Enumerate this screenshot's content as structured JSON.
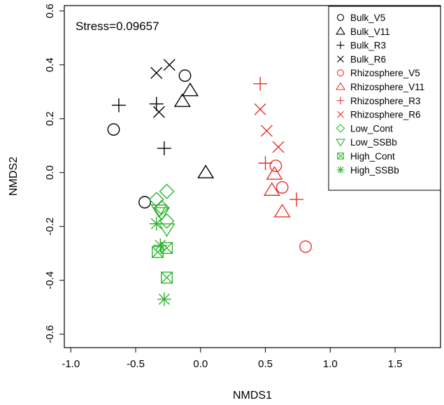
{
  "chart_data": {
    "type": "scatter",
    "title": "",
    "xlabel": "NMDS1",
    "ylabel": "NMDS2",
    "annotation": "Stress=0.09657",
    "xlim": [
      -1.05,
      1.85
    ],
    "ylim": [
      -0.65,
      0.62
    ],
    "xticks": [
      "-1.0",
      "-0.5",
      "0.0",
      "0.5",
      "1.0",
      "1.5"
    ],
    "yticks": [
      "-0.6",
      "-0.4",
      "-0.2",
      "0.0",
      "0.2",
      "0.4",
      "0.6"
    ],
    "legend_position": "top-right",
    "colors": {
      "bulk": "#000000",
      "rhizosphere": "#e8312b",
      "treatment": "#2db52d"
    },
    "series": [
      {
        "name": "Bulk_V5",
        "marker": "circle",
        "color": "#000000",
        "points": [
          [
            -0.67,
            0.16
          ],
          [
            -0.12,
            0.36
          ],
          [
            -0.43,
            -0.11
          ]
        ]
      },
      {
        "name": "Bulk_V11",
        "marker": "triangle-up",
        "color": "#000000",
        "points": [
          [
            -0.08,
            0.305
          ],
          [
            -0.14,
            0.265
          ],
          [
            0.04,
            0.0
          ]
        ]
      },
      {
        "name": "Bulk_R3",
        "marker": "plus",
        "color": "#000000",
        "points": [
          [
            -0.63,
            0.25
          ],
          [
            -0.34,
            0.255
          ],
          [
            -0.28,
            0.09
          ]
        ]
      },
      {
        "name": "Bulk_R6",
        "marker": "cross",
        "color": "#000000",
        "points": [
          [
            -0.24,
            0.4
          ],
          [
            -0.34,
            0.37
          ],
          [
            -0.32,
            0.225
          ]
        ]
      },
      {
        "name": "Rhizosphere_V5",
        "marker": "circle",
        "color": "#e8312b",
        "points": [
          [
            0.58,
            0.025
          ],
          [
            0.63,
            -0.055
          ],
          [
            0.81,
            -0.275
          ]
        ]
      },
      {
        "name": "Rhizosphere_V11",
        "marker": "triangle-up",
        "color": "#e8312b",
        "points": [
          [
            0.55,
            -0.065
          ],
          [
            0.63,
            -0.145
          ],
          [
            0.57,
            -0.005
          ]
        ]
      },
      {
        "name": "Rhizosphere_R3",
        "marker": "plus",
        "color": "#e8312b",
        "points": [
          [
            0.46,
            0.33
          ],
          [
            0.5,
            0.035
          ],
          [
            0.74,
            -0.1
          ]
        ]
      },
      {
        "name": "Rhizosphere_R6",
        "marker": "cross",
        "color": "#e8312b",
        "points": [
          [
            0.46,
            0.235
          ],
          [
            0.51,
            0.155
          ],
          [
            0.6,
            0.095
          ]
        ]
      },
      {
        "name": "Low_Cont",
        "marker": "diamond",
        "color": "#2db52d",
        "points": [
          [
            -0.26,
            -0.07
          ],
          [
            -0.3,
            -0.13
          ],
          [
            -0.34,
            -0.1
          ],
          [
            -0.26,
            -0.18
          ]
        ]
      },
      {
        "name": "Low_SSBb",
        "marker": "triangle-down",
        "color": "#2db52d",
        "points": [
          [
            -0.3,
            -0.15
          ],
          [
            -0.26,
            -0.21
          ],
          [
            -0.32,
            -0.14
          ]
        ]
      },
      {
        "name": "High_Cont",
        "marker": "square-x",
        "color": "#2db52d",
        "points": [
          [
            -0.33,
            -0.295
          ],
          [
            -0.26,
            -0.28
          ],
          [
            -0.26,
            -0.39
          ]
        ]
      },
      {
        "name": "High_SSBb",
        "marker": "asterisk",
        "color": "#2db52d",
        "points": [
          [
            -0.34,
            -0.19
          ],
          [
            -0.31,
            -0.27
          ],
          [
            -0.28,
            -0.47
          ]
        ]
      }
    ]
  }
}
